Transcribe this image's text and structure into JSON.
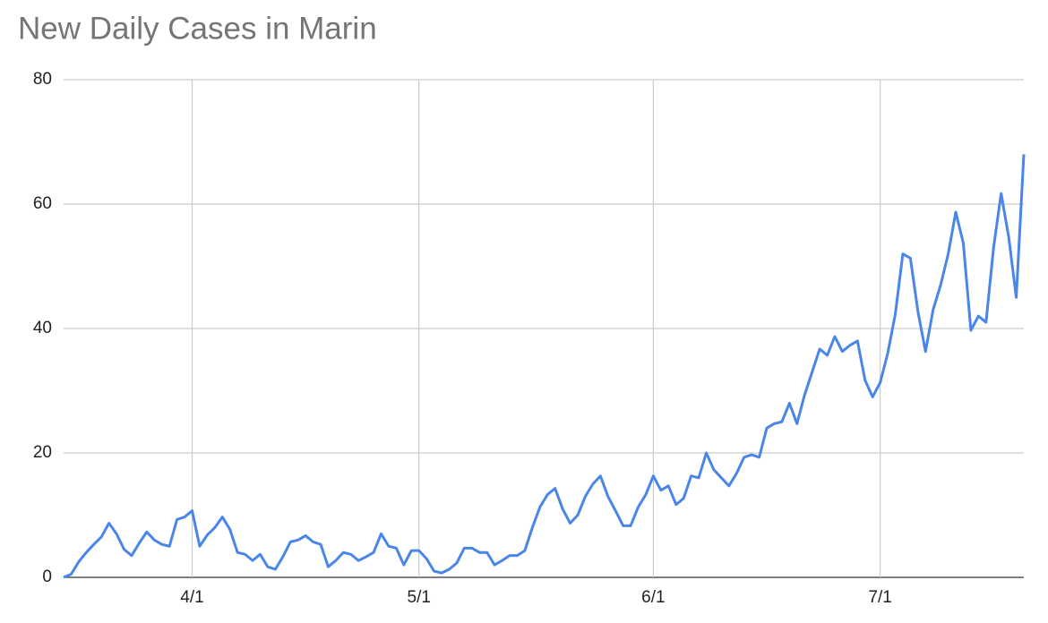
{
  "chart_data": {
    "type": "line",
    "title": "New Daily Cases in Marin",
    "x": [
      "3/15",
      "3/16",
      "3/17",
      "3/18",
      "3/19",
      "3/20",
      "3/21",
      "3/22",
      "3/23",
      "3/24",
      "3/25",
      "3/26",
      "3/27",
      "3/28",
      "3/29",
      "3/30",
      "3/31",
      "4/1",
      "4/2",
      "4/3",
      "4/4",
      "4/5",
      "4/6",
      "4/7",
      "4/8",
      "4/9",
      "4/10",
      "4/11",
      "4/12",
      "4/13",
      "4/14",
      "4/15",
      "4/16",
      "4/17",
      "4/18",
      "4/19",
      "4/20",
      "4/21",
      "4/22",
      "4/23",
      "4/24",
      "4/25",
      "4/26",
      "4/27",
      "4/28",
      "4/29",
      "4/30",
      "5/1",
      "5/2",
      "5/3",
      "5/4",
      "5/5",
      "5/6",
      "5/7",
      "5/8",
      "5/9",
      "5/10",
      "5/11",
      "5/12",
      "5/13",
      "5/14",
      "5/15",
      "5/16",
      "5/17",
      "5/18",
      "5/19",
      "5/20",
      "5/21",
      "5/22",
      "5/23",
      "5/24",
      "5/25",
      "5/26",
      "5/27",
      "5/28",
      "5/29",
      "5/30",
      "5/31",
      "6/1",
      "6/2",
      "6/3",
      "6/4",
      "6/5",
      "6/6",
      "6/7",
      "6/8",
      "6/9",
      "6/10",
      "6/11",
      "6/12",
      "6/13",
      "6/14",
      "6/15",
      "6/16",
      "6/17",
      "6/18",
      "6/19",
      "6/20",
      "6/21",
      "6/22",
      "6/23",
      "6/24",
      "6/25",
      "6/26",
      "6/27",
      "6/28",
      "6/29",
      "6/30",
      "7/1",
      "7/2",
      "7/3",
      "7/4",
      "7/5",
      "7/6",
      "7/7",
      "7/8",
      "7/9",
      "7/10",
      "7/11",
      "7/12",
      "7/13",
      "7/14",
      "7/15",
      "7/16",
      "7/17",
      "7/18",
      "7/19",
      "7/20"
    ],
    "series": [
      {
        "name": "New Daily Cases",
        "color": "#4a86e8",
        "values": [
          0,
          0.5,
          2.5,
          4,
          5.3,
          6.5,
          8.7,
          7,
          4.5,
          3.5,
          5.5,
          7.3,
          6,
          5.3,
          5,
          9.3,
          9.7,
          10.7,
          5,
          6.8,
          8,
          9.7,
          7.7,
          4,
          3.7,
          2.7,
          3.7,
          1.7,
          1.3,
          3.3,
          5.7,
          6,
          6.7,
          5.7,
          5.3,
          1.7,
          2.7,
          4,
          3.7,
          2.7,
          3.3,
          4,
          7,
          5,
          4.7,
          2,
          4.3,
          4.3,
          3,
          1,
          0.7,
          1.3,
          2.3,
          4.7,
          4.7,
          4,
          4,
          2,
          2.7,
          3.5,
          3.5,
          4.3,
          8,
          11.3,
          13.3,
          14.3,
          11,
          8.7,
          10,
          13,
          15,
          16.3,
          13,
          10.7,
          8.3,
          8.3,
          11.3,
          13.3,
          16.3,
          14,
          14.7,
          11.7,
          12.7,
          16.3,
          16,
          20,
          17.3,
          16,
          14.7,
          16.7,
          19.3,
          19.7,
          19.3,
          24,
          24.7,
          25,
          28,
          24.7,
          29.3,
          33,
          36.7,
          35.7,
          38.7,
          36.3,
          37.3,
          38,
          31.7,
          29,
          31.3,
          36,
          42.3,
          52,
          51.3,
          42.7,
          36.3,
          43,
          47,
          52,
          58.7,
          53.7,
          39.7,
          42,
          41,
          53,
          61.7,
          54.7,
          45,
          68
        ]
      }
    ],
    "xticks": [
      "4/1",
      "5/1",
      "6/1",
      "7/1"
    ],
    "ylim": [
      0,
      80
    ],
    "yticks": [
      0,
      20,
      40,
      60,
      80
    ],
    "grid": true
  }
}
